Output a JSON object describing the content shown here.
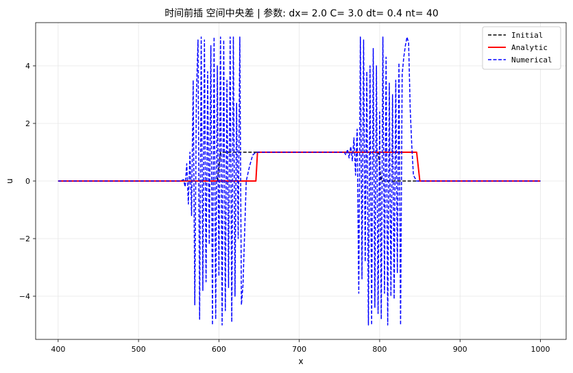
{
  "chart_data": {
    "type": "line",
    "title": "时间前插 空间中央差 | 参数: dx= 2.0    C= 3.0   dt= 0.4   nt=  40",
    "xlabel": "x",
    "ylabel": "u",
    "xlim": [
      372,
      1032
    ],
    "ylim": [
      -5.5,
      5.5
    ],
    "xticks": [
      400,
      500,
      600,
      700,
      800,
      900,
      1000
    ],
    "yticks": [
      -4,
      -2,
      0,
      2,
      4
    ],
    "grid": true,
    "legend_position": "top-right",
    "series": [
      {
        "name": "Initial",
        "color": "#000000",
        "dash": "dashed",
        "points": [
          [
            400,
            0
          ],
          [
            598,
            0
          ],
          [
            602,
            1
          ],
          [
            798,
            1
          ],
          [
            802,
            0
          ],
          [
            1000,
            0
          ]
        ]
      },
      {
        "name": "Analytic",
        "color": "#ff0000",
        "dash": "solid",
        "points": [
          [
            400,
            0
          ],
          [
            646,
            0
          ],
          [
            648,
            1
          ],
          [
            846,
            1
          ],
          [
            850,
            0
          ],
          [
            1000,
            0
          ]
        ]
      },
      {
        "name": "Numerical",
        "color": "#0000ff",
        "dash": "dashed",
        "points": [
          [
            400,
            0
          ],
          [
            552,
            0
          ],
          [
            556,
            0.05
          ],
          [
            558,
            -0.2
          ],
          [
            560,
            0.6
          ],
          [
            562,
            -0.8
          ],
          [
            564,
            1.0
          ],
          [
            566,
            -1.2
          ],
          [
            568,
            3.5
          ],
          [
            570,
            -4.3
          ],
          [
            572,
            3.0
          ],
          [
            574,
            4.9
          ],
          [
            576,
            -4.8
          ],
          [
            578,
            5.0
          ],
          [
            580,
            -3.8
          ],
          [
            582,
            4.9
          ],
          [
            584,
            -3.5
          ],
          [
            586,
            3.8
          ],
          [
            588,
            -2.2
          ],
          [
            590,
            4.7
          ],
          [
            592,
            -5.0
          ],
          [
            594,
            5.0
          ],
          [
            596,
            -4.8
          ],
          [
            598,
            4.0
          ],
          [
            600,
            -3.3
          ],
          [
            602,
            5.0
          ],
          [
            604,
            -5.0
          ],
          [
            606,
            4.9
          ],
          [
            608,
            -4.5
          ],
          [
            610,
            3.5
          ],
          [
            612,
            -3.7
          ],
          [
            614,
            5.0
          ],
          [
            616,
            -4.9
          ],
          [
            618,
            5.0
          ],
          [
            620,
            -4.0
          ],
          [
            622,
            2.7
          ],
          [
            624,
            -2.0
          ],
          [
            626,
            5.0
          ],
          [
            628,
            -4.3
          ],
          [
            630,
            -3.6
          ],
          [
            634,
            0.0
          ],
          [
            638,
            0.5
          ],
          [
            642,
            0.9
          ],
          [
            646,
            1.0
          ],
          [
            756,
            1.0
          ],
          [
            758,
            0.9
          ],
          [
            760,
            1.1
          ],
          [
            762,
            0.8
          ],
          [
            764,
            1.2
          ],
          [
            766,
            0.7
          ],
          [
            768,
            1.5
          ],
          [
            770,
            0.2
          ],
          [
            772,
            1.8
          ],
          [
            774,
            -3.9
          ],
          [
            776,
            5.0
          ],
          [
            778,
            -3.4
          ],
          [
            780,
            4.9
          ],
          [
            782,
            -2.8
          ],
          [
            784,
            3.8
          ],
          [
            786,
            -5.0
          ],
          [
            788,
            4.0
          ],
          [
            790,
            -5.0
          ],
          [
            792,
            4.6
          ],
          [
            794,
            -4.4
          ],
          [
            796,
            4.0
          ],
          [
            798,
            -4.6
          ],
          [
            800,
            2.4
          ],
          [
            802,
            -4.8
          ],
          [
            804,
            5.0
          ],
          [
            806,
            -3.9
          ],
          [
            808,
            4.3
          ],
          [
            810,
            -5.0
          ],
          [
            812,
            3.4
          ],
          [
            814,
            -4.0
          ],
          [
            816,
            3.0
          ],
          [
            818,
            -4.1
          ],
          [
            820,
            3.5
          ],
          [
            822,
            -3.2
          ],
          [
            824,
            4.1
          ],
          [
            826,
            -5.0
          ],
          [
            828,
            3.7
          ],
          [
            830,
            4.3
          ],
          [
            832,
            4.7
          ],
          [
            834,
            5.0
          ],
          [
            836,
            4.8
          ],
          [
            838,
            2.5
          ],
          [
            840,
            1.2
          ],
          [
            842,
            0.2
          ],
          [
            846,
            0.0
          ],
          [
            1000,
            0
          ]
        ]
      }
    ]
  }
}
